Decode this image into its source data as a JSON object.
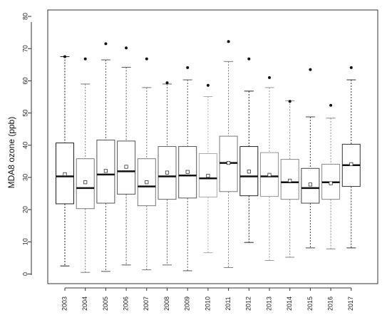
{
  "chart_data": {
    "type": "boxplot",
    "title": "",
    "xlabel": "",
    "ylabel": "MDA8 ozone (ppb)",
    "ylim": [
      -3,
      82
    ],
    "yticks": [
      0,
      10,
      20,
      30,
      40,
      50,
      60,
      70,
      80
    ],
    "grid": false,
    "legend": "none",
    "mean_marker": "open-square",
    "outlier_marker": "filled-dot",
    "categories": [
      "2003",
      "2004",
      "2005",
      "2006",
      "2007",
      "2008",
      "2009",
      "2010",
      "2011",
      "2012",
      "2013",
      "2014",
      "2015",
      "2016",
      "2017"
    ],
    "boxes": [
      {
        "year": "2003",
        "whisker_low": 2.5,
        "q1": 21.8,
        "median": 30.3,
        "q3": 40.7,
        "whisker_high": 67.5,
        "mean": 31.0,
        "outliers": [
          67.5
        ],
        "color": "#222222"
      },
      {
        "year": "2004",
        "whisker_low": 0.5,
        "q1": 20.3,
        "median": 26.7,
        "q3": 35.8,
        "whisker_high": 59.0,
        "mean": 28.5,
        "outliers": [
          66.8
        ],
        "color": "#777777"
      },
      {
        "year": "2005",
        "whisker_low": 0.8,
        "q1": 22.0,
        "median": 30.9,
        "q3": 41.6,
        "whisker_high": 66.5,
        "mean": 32.0,
        "outliers": [
          71.5
        ],
        "color": "#555555"
      },
      {
        "year": "2006",
        "whisker_low": 2.8,
        "q1": 24.8,
        "median": 31.9,
        "q3": 41.3,
        "whisker_high": 64.2,
        "mean": 33.3,
        "outliers": [
          70.2
        ],
        "color": "#555555"
      },
      {
        "year": "2007",
        "whisker_low": 1.3,
        "q1": 21.2,
        "median": 27.2,
        "q3": 35.8,
        "whisker_high": 57.9,
        "mean": 28.5,
        "outliers": [
          66.8
        ],
        "color": "#777777"
      },
      {
        "year": "2008",
        "whisker_low": 2.8,
        "q1": 23.2,
        "median": 30.3,
        "q3": 39.6,
        "whisker_high": 59.0,
        "mean": 31.5,
        "outliers": [
          59.4
        ],
        "color": "#666666"
      },
      {
        "year": "2009",
        "whisker_low": 1.0,
        "q1": 23.6,
        "median": 30.6,
        "q3": 39.6,
        "whisker_high": 60.3,
        "mean": 31.7,
        "outliers": [
          64.1
        ],
        "color": "#555555"
      },
      {
        "year": "2010",
        "whisker_low": 6.6,
        "q1": 23.9,
        "median": 29.7,
        "q3": 37.4,
        "whisker_high": 55.1,
        "mean": 30.5,
        "outliers": [
          58.6
        ],
        "color": "#aaaaaa"
      },
      {
        "year": "2011",
        "whisker_low": 2.0,
        "q1": 25.6,
        "median": 34.5,
        "q3": 42.8,
        "whisker_high": 66.0,
        "mean": 34.5,
        "outliers": [
          72.2
        ],
        "color": "#777777"
      },
      {
        "year": "2012",
        "whisker_low": 9.8,
        "q1": 24.3,
        "median": 30.3,
        "q3": 39.6,
        "whisker_high": 56.8,
        "mean": 31.8,
        "outliers": [
          66.8
        ],
        "color": "#222222"
      },
      {
        "year": "2013",
        "whisker_low": 4.2,
        "q1": 24.1,
        "median": 30.3,
        "q3": 37.7,
        "whisker_high": 57.9,
        "mean": 30.8,
        "outliers": [
          61.0
        ],
        "color": "#999999"
      },
      {
        "year": "2014",
        "whisker_low": 5.2,
        "q1": 23.2,
        "median": 28.5,
        "q3": 35.6,
        "whisker_high": 53.8,
        "mean": 29.0,
        "outliers": [
          53.6
        ],
        "color": "#888888"
      },
      {
        "year": "2015",
        "whisker_low": 8.1,
        "q1": 22.0,
        "median": 26.7,
        "q3": 32.8,
        "whisker_high": 48.8,
        "mean": 27.8,
        "outliers": [
          63.5
        ],
        "color": "#444444"
      },
      {
        "year": "2016",
        "whisker_low": 7.8,
        "q1": 23.2,
        "median": 28.5,
        "q3": 34.1,
        "whisker_high": 48.4,
        "mean": 28.2,
        "outliers": [
          52.4
        ],
        "color": "#888888"
      },
      {
        "year": "2017",
        "whisker_low": 8.1,
        "q1": 27.2,
        "median": 33.8,
        "q3": 40.3,
        "whisker_high": 60.3,
        "mean": 34.1,
        "outliers": [
          64.1
        ],
        "color": "#333333"
      }
    ]
  }
}
